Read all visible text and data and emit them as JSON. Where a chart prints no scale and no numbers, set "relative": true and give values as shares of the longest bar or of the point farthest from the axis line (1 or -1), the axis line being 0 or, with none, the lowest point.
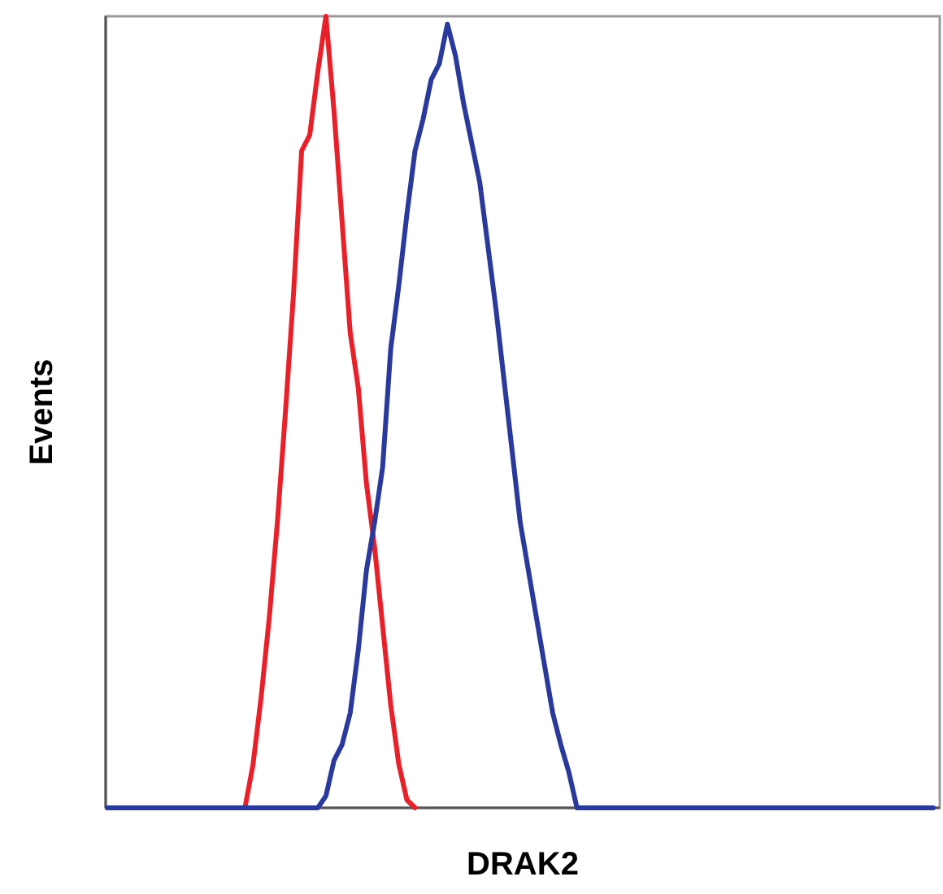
{
  "chart_data": {
    "type": "line",
    "xlabel": "DRAK2",
    "ylabel": "Events",
    "relative": true,
    "line_style": "solid",
    "categories": [
      null,
      null,
      null,
      null,
      null,
      null,
      null,
      null,
      null,
      null,
      null,
      null,
      null,
      null,
      null,
      null,
      null,
      null,
      null,
      null,
      null,
      null,
      null,
      null,
      null,
      null,
      null,
      null,
      null,
      null,
      null,
      null,
      null,
      null,
      null,
      null,
      null,
      null,
      null,
      null,
      null,
      null,
      null,
      null,
      null,
      null,
      null,
      null,
      null,
      null,
      null,
      null,
      null,
      null,
      null,
      null,
      null,
      null,
      null,
      null,
      null,
      null,
      null,
      null,
      null,
      null,
      null,
      null,
      null,
      null,
      null,
      null,
      null,
      null,
      null,
      null,
      null,
      null,
      null,
      null,
      null,
      null,
      null,
      null,
      null,
      null,
      null,
      null,
      null,
      null,
      null,
      null,
      null,
      null,
      null,
      null,
      null,
      null,
      null,
      null,
      null,
      null,
      null
    ],
    "series": [
      {
        "color": "#e8202a",
        "values": [
          null,
          null,
          null,
          null,
          null,
          null,
          null,
          null,
          null,
          null,
          null,
          null,
          null,
          null,
          null,
          null,
          null,
          0,
          0.055,
          0.14,
          0.24,
          0.36,
          0.5,
          0.65,
          0.83,
          0.85,
          0.93,
          1,
          0.88,
          0.74,
          0.6,
          0.53,
          0.41,
          0.33,
          0.23,
          0.13,
          0.055,
          0.01,
          0,
          null,
          null,
          null,
          null,
          null,
          null,
          null,
          null,
          null,
          null,
          null,
          null,
          null,
          null,
          null,
          null,
          null,
          null,
          null,
          null,
          null,
          null,
          null,
          null,
          null,
          null,
          null,
          null,
          null,
          null,
          null,
          null,
          null,
          null,
          null,
          null,
          null,
          null,
          null,
          null,
          null,
          null,
          null,
          null,
          null,
          null,
          null,
          null,
          null,
          null,
          null,
          null,
          null,
          null,
          null,
          null,
          null,
          null,
          null,
          null,
          null,
          null,
          null,
          null
        ]
      },
      {
        "color": "#2a3a9c",
        "values": [
          0,
          0,
          0,
          0,
          0,
          0,
          0,
          0,
          0,
          0,
          0,
          0,
          0,
          0,
          0,
          0,
          0,
          0,
          0,
          0,
          0,
          0,
          0,
          0,
          0,
          0,
          0,
          0.015,
          0.06,
          0.08,
          0.12,
          0.2,
          0.3,
          0.36,
          0.43,
          0.58,
          0.66,
          0.75,
          0.83,
          0.87,
          0.92,
          0.94,
          0.99,
          0.95,
          0.89,
          0.84,
          0.79,
          0.71,
          0.63,
          0.54,
          0.45,
          0.36,
          0.3,
          0.24,
          0.18,
          0.12,
          0.08,
          0.045,
          0,
          0,
          0,
          0,
          0,
          0,
          0,
          0,
          0,
          0,
          0,
          0,
          0,
          0,
          0,
          0,
          0,
          0,
          0,
          0,
          0,
          0,
          0,
          0,
          0,
          0,
          0,
          0,
          0,
          0,
          0,
          0,
          0,
          0,
          0,
          0,
          0,
          0,
          0,
          0,
          0,
          0,
          0,
          0,
          0
        ]
      }
    ]
  }
}
